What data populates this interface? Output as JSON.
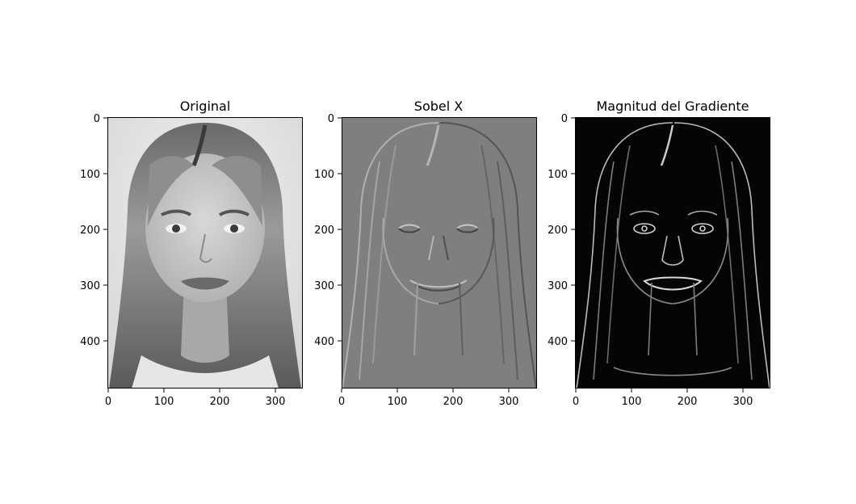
{
  "figure": {
    "panels": [
      {
        "title": "Original",
        "image": "grayscale portrait photo",
        "xticks": [
          "0",
          "100",
          "200",
          "300"
        ],
        "yticks": [
          "0",
          "100",
          "200",
          "300",
          "400"
        ],
        "xlim": [
          0,
          350
        ],
        "ylim": [
          488,
          0
        ]
      },
      {
        "title": "Sobel X",
        "image": "horizontal sobel edge response, mid-gray background",
        "xticks": [
          "0",
          "100",
          "200",
          "300"
        ],
        "yticks": [
          "0",
          "100",
          "200",
          "300",
          "400"
        ],
        "xlim": [
          0,
          350
        ],
        "ylim": [
          488,
          0
        ]
      },
      {
        "title": "Magnitud del Gradiente",
        "image": "gradient magnitude edge map, black background",
        "xticks": [
          "0",
          "100",
          "200",
          "300"
        ],
        "yticks": [
          "0",
          "100",
          "200",
          "300",
          "400"
        ],
        "xlim": [
          0,
          350
        ],
        "ylim": [
          488,
          0
        ]
      }
    ]
  }
}
